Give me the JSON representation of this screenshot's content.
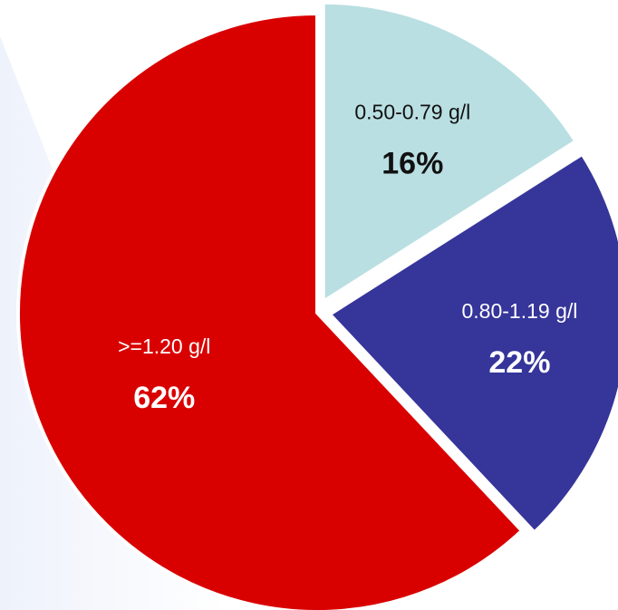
{
  "chart_data": {
    "type": "pie",
    "title": "",
    "slices": [
      {
        "label": "0.50-0.79 g/l",
        "value": 16,
        "value_label": "16%",
        "color": "#b9dfe2",
        "text_color": "#111111",
        "exploded": true
      },
      {
        "label": "0.80-1.19 g/l",
        "value": 22,
        "value_label": "22%",
        "color": "#35359a",
        "text_color": "#ffffff",
        "exploded": true
      },
      {
        "label": ">=1.20 g/l",
        "value": 62,
        "value_label": "62%",
        "color": "#d90000",
        "text_color": "#ffffff",
        "exploded": false
      }
    ],
    "start_angle_deg": 0,
    "direction": "clockwise",
    "legend": "none"
  }
}
